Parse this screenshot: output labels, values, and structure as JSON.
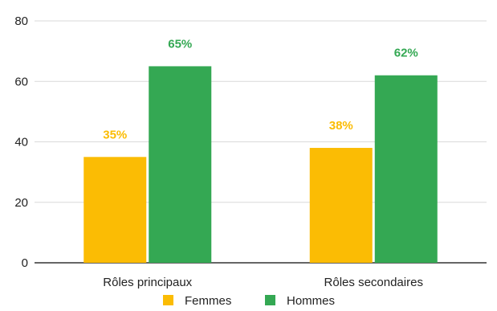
{
  "chart_data": {
    "type": "bar",
    "title": "",
    "xlabel": "",
    "ylabel": "",
    "categories": [
      "Rôles principaux",
      "Rôles secondaires"
    ],
    "series": [
      {
        "name": "Femmes",
        "values": [
          35,
          38
        ],
        "labels": [
          "35%",
          "38%"
        ],
        "color": "#FBBC04"
      },
      {
        "name": "Hommes",
        "values": [
          65,
          62
        ],
        "labels": [
          "65%",
          "62%"
        ],
        "color": "#34A853"
      }
    ],
    "ylim": [
      0,
      80
    ],
    "yticks": [
      0,
      20,
      40,
      60,
      80
    ],
    "ytick_labels": [
      "0",
      "20",
      "40",
      "60",
      "80"
    ],
    "grid": true,
    "legend_position": "bottom-center",
    "colors": {
      "gridline": "#d9d9d9",
      "axis": "#333333"
    }
  }
}
